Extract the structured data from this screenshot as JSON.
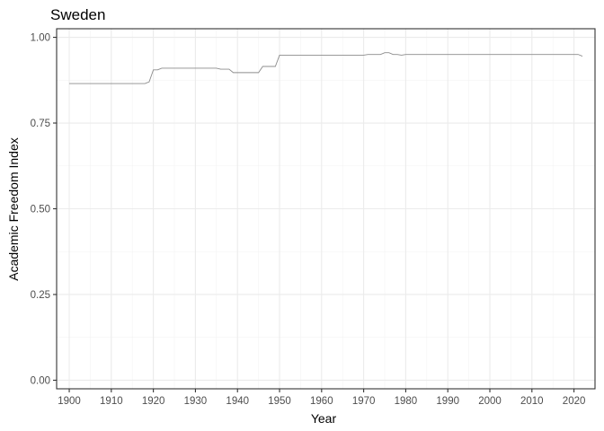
{
  "chart_data": {
    "type": "line",
    "title": "Sweden",
    "xlabel": "Year",
    "ylabel": "Academic Freedom Index",
    "xlim": [
      1897,
      2025
    ],
    "ylim": [
      -0.025,
      1.025
    ],
    "x_ticks": [
      1900,
      1910,
      1920,
      1930,
      1940,
      1950,
      1960,
      1970,
      1980,
      1990,
      2000,
      2010,
      2020
    ],
    "y_ticks": [
      0.0,
      0.25,
      0.5,
      0.75,
      1.0
    ],
    "y_tick_labels": [
      "0.00",
      "0.25",
      "0.50",
      "0.75",
      "1.00"
    ],
    "grid": true,
    "line_color": "#8c8c8c",
    "series": [
      {
        "x": [
          1900,
          1901,
          1902,
          1903,
          1904,
          1905,
          1906,
          1907,
          1908,
          1909,
          1910,
          1911,
          1912,
          1913,
          1914,
          1915,
          1916,
          1917,
          1918,
          1919,
          1920,
          1921,
          1922,
          1923,
          1924,
          1925,
          1926,
          1927,
          1928,
          1929,
          1930,
          1931,
          1932,
          1933,
          1934,
          1935,
          1936,
          1937,
          1938,
          1939,
          1940,
          1941,
          1942,
          1943,
          1944,
          1945,
          1946,
          1947,
          1948,
          1949,
          1950,
          1951,
          1952,
          1953,
          1954,
          1955,
          1956,
          1957,
          1958,
          1959,
          1960,
          1961,
          1962,
          1963,
          1964,
          1965,
          1966,
          1967,
          1968,
          1969,
          1970,
          1971,
          1972,
          1973,
          1974,
          1975,
          1976,
          1977,
          1978,
          1979,
          1980,
          1981,
          1982,
          1983,
          1984,
          1985,
          1986,
          1987,
          1988,
          1989,
          1990,
          1991,
          1992,
          1993,
          1994,
          1995,
          1996,
          1997,
          1998,
          1999,
          2000,
          2001,
          2002,
          2003,
          2004,
          2005,
          2006,
          2007,
          2008,
          2009,
          2010,
          2011,
          2012,
          2013,
          2014,
          2015,
          2016,
          2017,
          2018,
          2019,
          2020,
          2021,
          2022
        ],
        "values": [
          0.865,
          0.865,
          0.865,
          0.865,
          0.865,
          0.865,
          0.865,
          0.865,
          0.865,
          0.865,
          0.865,
          0.865,
          0.865,
          0.865,
          0.865,
          0.865,
          0.865,
          0.865,
          0.865,
          0.87,
          0.905,
          0.905,
          0.91,
          0.91,
          0.91,
          0.91,
          0.91,
          0.91,
          0.91,
          0.91,
          0.91,
          0.91,
          0.91,
          0.91,
          0.91,
          0.91,
          0.907,
          0.907,
          0.907,
          0.897,
          0.897,
          0.897,
          0.897,
          0.897,
          0.897,
          0.897,
          0.915,
          0.915,
          0.915,
          0.915,
          0.948,
          0.948,
          0.948,
          0.948,
          0.948,
          0.948,
          0.948,
          0.948,
          0.948,
          0.948,
          0.948,
          0.948,
          0.948,
          0.948,
          0.948,
          0.948,
          0.948,
          0.948,
          0.948,
          0.948,
          0.948,
          0.95,
          0.95,
          0.95,
          0.95,
          0.955,
          0.955,
          0.95,
          0.95,
          0.948,
          0.95,
          0.95,
          0.95,
          0.95,
          0.95,
          0.95,
          0.95,
          0.95,
          0.95,
          0.95,
          0.95,
          0.95,
          0.95,
          0.95,
          0.95,
          0.95,
          0.95,
          0.95,
          0.95,
          0.95,
          0.95,
          0.95,
          0.95,
          0.95,
          0.95,
          0.95,
          0.95,
          0.95,
          0.95,
          0.95,
          0.95,
          0.95,
          0.95,
          0.95,
          0.95,
          0.95,
          0.95,
          0.95,
          0.95,
          0.95,
          0.95,
          0.95,
          0.945
        ]
      }
    ]
  }
}
